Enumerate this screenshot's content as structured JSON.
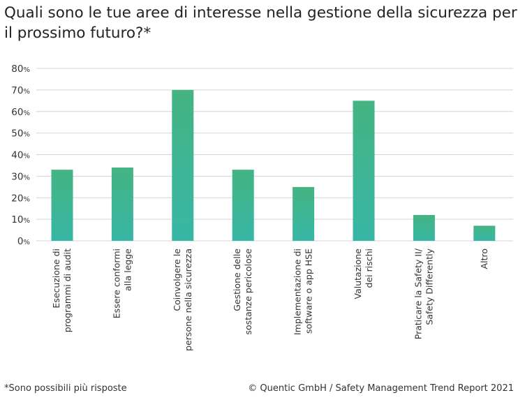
{
  "title": "Quali sono le tue aree di interesse nella gestione della sicurezza per il prossimo futuro?*",
  "footnote": "*Sono possibili più risposte",
  "source": "© Quentic GmbH / Safety Management Trend Report 2021",
  "colors": {
    "bar_top": "#44b482",
    "bar_bottom": "#38b6a6",
    "grid": "#d0d4d8"
  },
  "chart_data": {
    "type": "bar",
    "title": "Quali sono le tue aree di interesse nella gestione della sicurezza per il prossimo futuro?*",
    "xlabel": "",
    "ylabel": "",
    "ylim": [
      0,
      80
    ],
    "yticks": [
      0,
      10,
      20,
      30,
      40,
      50,
      60,
      70,
      80
    ],
    "ytick_suffix": "%",
    "grid": true,
    "categories": [
      [
        "Esecuzione di",
        "programmi di audit"
      ],
      [
        "Essere conformi",
        "alla legge"
      ],
      [
        "Coinvolgere le",
        "persone nella sicurezza"
      ],
      [
        "Gestione delle",
        "sostanze pericolose"
      ],
      [
        "Implementazione di",
        "software o app HSE"
      ],
      [
        "Valutazione",
        "dei rischi"
      ],
      [
        "Praticare la Safety II/",
        "Safety Differently"
      ],
      [
        "Altro"
      ]
    ],
    "values": [
      33,
      34,
      70,
      33,
      25,
      65,
      12,
      7
    ]
  }
}
